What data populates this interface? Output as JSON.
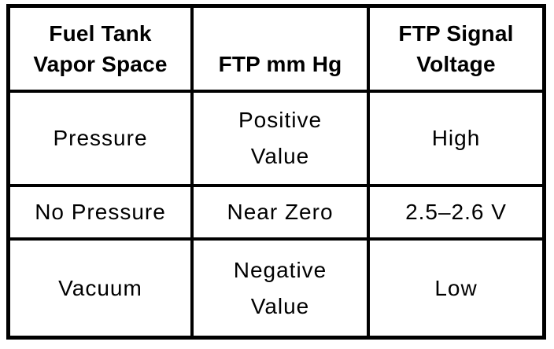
{
  "colors": {
    "background": "#ffffff",
    "border": "#000000",
    "text": "#000000"
  },
  "table": {
    "columns": [
      {
        "header_lines": [
          "Fuel Tank",
          "Vapor Space"
        ]
      },
      {
        "header_lines": [
          "FTP mm Hg"
        ]
      },
      {
        "header_lines": [
          "FTP Signal",
          "Voltage"
        ]
      }
    ],
    "rows": [
      {
        "cells": [
          [
            "Pressure"
          ],
          [
            "Positive",
            "Value"
          ],
          [
            "High"
          ]
        ]
      },
      {
        "cells": [
          [
            "No Pressure"
          ],
          [
            "Near Zero"
          ],
          [
            "2.5–2.6 V"
          ]
        ]
      },
      {
        "cells": [
          [
            "Vacuum"
          ],
          [
            "Negative",
            "Value"
          ],
          [
            "Low"
          ]
        ]
      }
    ]
  }
}
